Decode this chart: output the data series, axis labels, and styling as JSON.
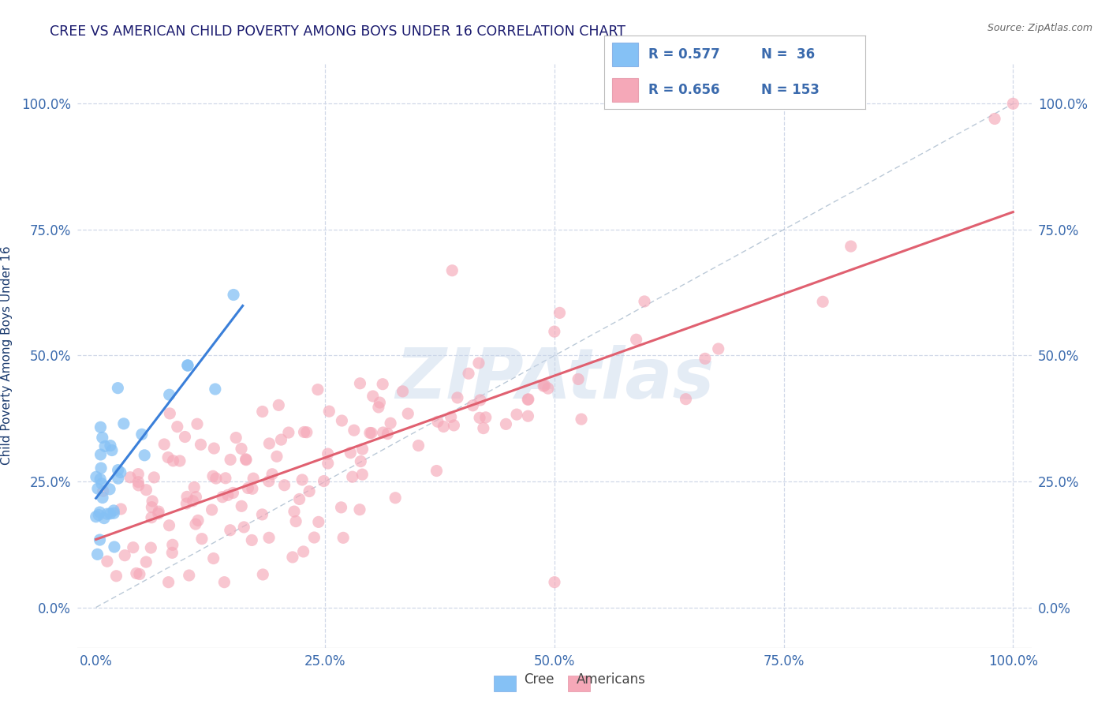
{
  "title": "CREE VS AMERICAN CHILD POVERTY AMONG BOYS UNDER 16 CORRELATION CHART",
  "source_text": "Source: ZipAtlas.com",
  "ylabel": "Child Poverty Among Boys Under 16",
  "watermark": "ZIPAtlas",
  "xlim": [
    -0.02,
    1.02
  ],
  "ylim": [
    -0.08,
    1.08
  ],
  "xticks": [
    0.0,
    0.25,
    0.5,
    0.75,
    1.0
  ],
  "yticks": [
    0.0,
    0.25,
    0.5,
    0.75,
    1.0
  ],
  "xticklabels": [
    "0.0%",
    "25.0%",
    "50.0%",
    "75.0%",
    "100.0%"
  ],
  "yticklabels": [
    "0.0%",
    "25.0%",
    "50.0%",
    "75.0%",
    "100.0%"
  ],
  "cree_color": "#85c1f5",
  "american_color": "#f5a8b8",
  "cree_R": 0.577,
  "cree_N": 36,
  "american_R": 0.656,
  "american_N": 153,
  "cree_line_color": "#3a7fd9",
  "american_line_color": "#e06070",
  "ref_line_color": "#aabcce",
  "background_color": "#ffffff",
  "grid_color": "#d0d8e8",
  "title_color": "#1a1a6e",
  "axis_label_color": "#1a3a6e",
  "tick_color": "#3a6aad",
  "legend_color": "#3a6aad",
  "source_color": "#666666"
}
